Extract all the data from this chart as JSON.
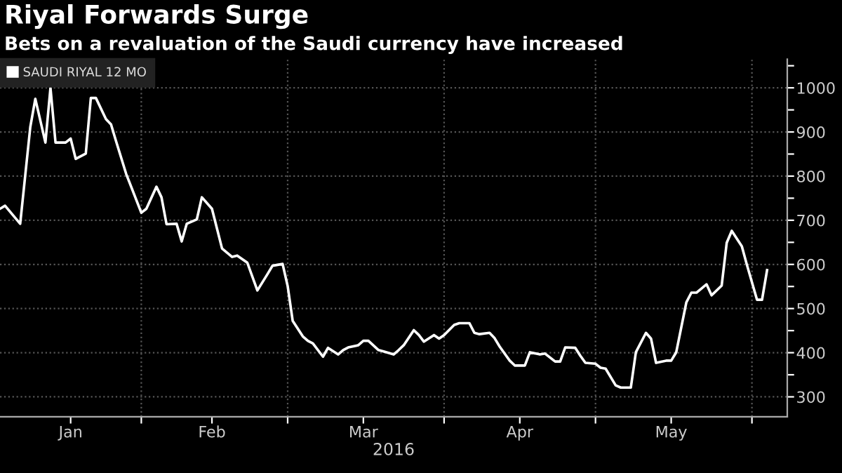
{
  "chart_data": {
    "type": "line",
    "title": "Riyal Forwards Surge",
    "subtitle": "Bets on a revaluation of the Saudi currency have increased",
    "xlabel": "2016",
    "x": [
      "2016-01-04",
      "2016-01-05",
      "2016-01-08",
      "2016-01-10",
      "2016-01-11",
      "2016-01-13",
      "2016-01-14",
      "2016-01-15",
      "2016-01-17",
      "2016-01-18",
      "2016-01-19",
      "2016-01-21",
      "2016-01-22",
      "2016-01-23",
      "2016-01-25",
      "2016-01-26",
      "2016-01-27",
      "2016-01-29",
      "2016-02-01",
      "2016-02-02",
      "2016-02-04",
      "2016-02-05",
      "2016-02-06",
      "2016-02-08",
      "2016-02-09",
      "2016-02-10",
      "2016-02-12",
      "2016-02-13",
      "2016-02-15",
      "2016-02-17",
      "2016-02-19",
      "2016-02-20",
      "2016-02-22",
      "2016-02-24",
      "2016-02-26",
      "2016-02-27",
      "2016-02-29",
      "2016-03-01",
      "2016-03-02",
      "2016-03-04",
      "2016-03-05",
      "2016-03-06",
      "2016-03-08",
      "2016-03-09",
      "2016-03-11",
      "2016-03-12",
      "2016-03-13",
      "2016-03-15",
      "2016-03-16",
      "2016-03-17",
      "2016-03-19",
      "2016-03-20",
      "2016-03-22",
      "2016-03-23",
      "2016-03-24",
      "2016-03-26",
      "2016-03-27",
      "2016-03-28",
      "2016-03-30",
      "2016-03-31",
      "2016-04-01",
      "2016-04-03",
      "2016-04-04",
      "2016-04-06",
      "2016-04-07",
      "2016-04-08",
      "2016-04-10",
      "2016-04-11",
      "2016-04-12",
      "2016-04-14",
      "2016-04-15",
      "2016-04-17",
      "2016-04-18",
      "2016-04-20",
      "2016-04-21",
      "2016-04-23",
      "2016-04-24",
      "2016-04-25",
      "2016-04-27",
      "2016-04-28",
      "2016-04-29",
      "2016-05-01",
      "2016-05-02",
      "2016-05-03",
      "2016-05-05",
      "2016-05-06",
      "2016-05-08",
      "2016-05-09",
      "2016-05-11",
      "2016-05-12",
      "2016-05-13",
      "2016-05-15",
      "2016-05-16",
      "2016-05-17",
      "2016-05-19",
      "2016-05-20",
      "2016-05-21",
      "2016-05-23",
      "2016-05-24",
      "2016-05-26",
      "2016-05-27",
      "2016-05-28",
      "2016-05-30",
      "2016-05-31",
      "2016-06-02",
      "2016-06-03",
      "2016-06-04"
    ],
    "series": [
      {
        "name": "SAUDI RIYAL 12 MO",
        "color": "#ffffff",
        "values": [
          726,
          733,
          692,
          911,
          975,
          876,
          1000,
          876,
          876,
          885,
          839,
          851,
          977,
          977,
          929,
          917,
          879,
          805,
          717,
          726,
          776,
          752,
          691,
          692,
          652,
          692,
          702,
          752,
          726,
          636,
          617,
          620,
          604,
          541,
          578,
          597,
          601,
          551,
          472,
          437,
          427,
          421,
          391,
          411,
          396,
          406,
          412,
          417,
          427,
          427,
          406,
          403,
          396,
          406,
          417,
          451,
          440,
          425,
          440,
          432,
          440,
          463,
          467,
          467,
          445,
          442,
          445,
          433,
          414,
          382,
          371,
          371,
          401,
          396,
          398,
          380,
          380,
          412,
          411,
          393,
          377,
          375,
          366,
          364,
          326,
          321,
          321,
          401,
          445,
          432,
          377,
          382,
          382,
          401,
          514,
          536,
          536,
          555,
          530,
          552,
          649,
          676,
          641,
          599,
          520,
          520,
          587
        ]
      }
    ],
    "xlim": [
      "2016-01-04",
      "2016-06-08"
    ],
    "xticks": [
      {
        "value": "2016-01-18",
        "label": "Jan"
      },
      {
        "value": "2016-02-01",
        "label": null
      },
      {
        "value": "2016-02-15",
        "label": "Feb"
      },
      {
        "value": "2016-03-01",
        "label": null
      },
      {
        "value": "2016-03-16",
        "label": "Mar"
      },
      {
        "value": "2016-04-01",
        "label": null
      },
      {
        "value": "2016-04-16",
        "label": "Apr"
      },
      {
        "value": "2016-05-01",
        "label": null
      },
      {
        "value": "2016-05-16",
        "label": "May"
      },
      {
        "value": "2016-06-01",
        "label": null
      }
    ],
    "ylim": [
      255,
      1065
    ],
    "yticks": [
      300,
      {
        "value": 350,
        "label": null
      },
      400,
      {
        "value": 450,
        "label": null
      },
      500,
      {
        "value": 550,
        "label": null
      },
      600,
      {
        "value": 650,
        "label": null
      },
      700,
      {
        "value": 750,
        "label": null
      },
      800,
      {
        "value": 850,
        "label": null
      },
      900,
      {
        "value": 950,
        "label": null
      },
      1000,
      {
        "value": 1050,
        "label": null
      }
    ],
    "grid": true,
    "legend": "top left",
    "marker": "none",
    "line_style": "solid"
  }
}
